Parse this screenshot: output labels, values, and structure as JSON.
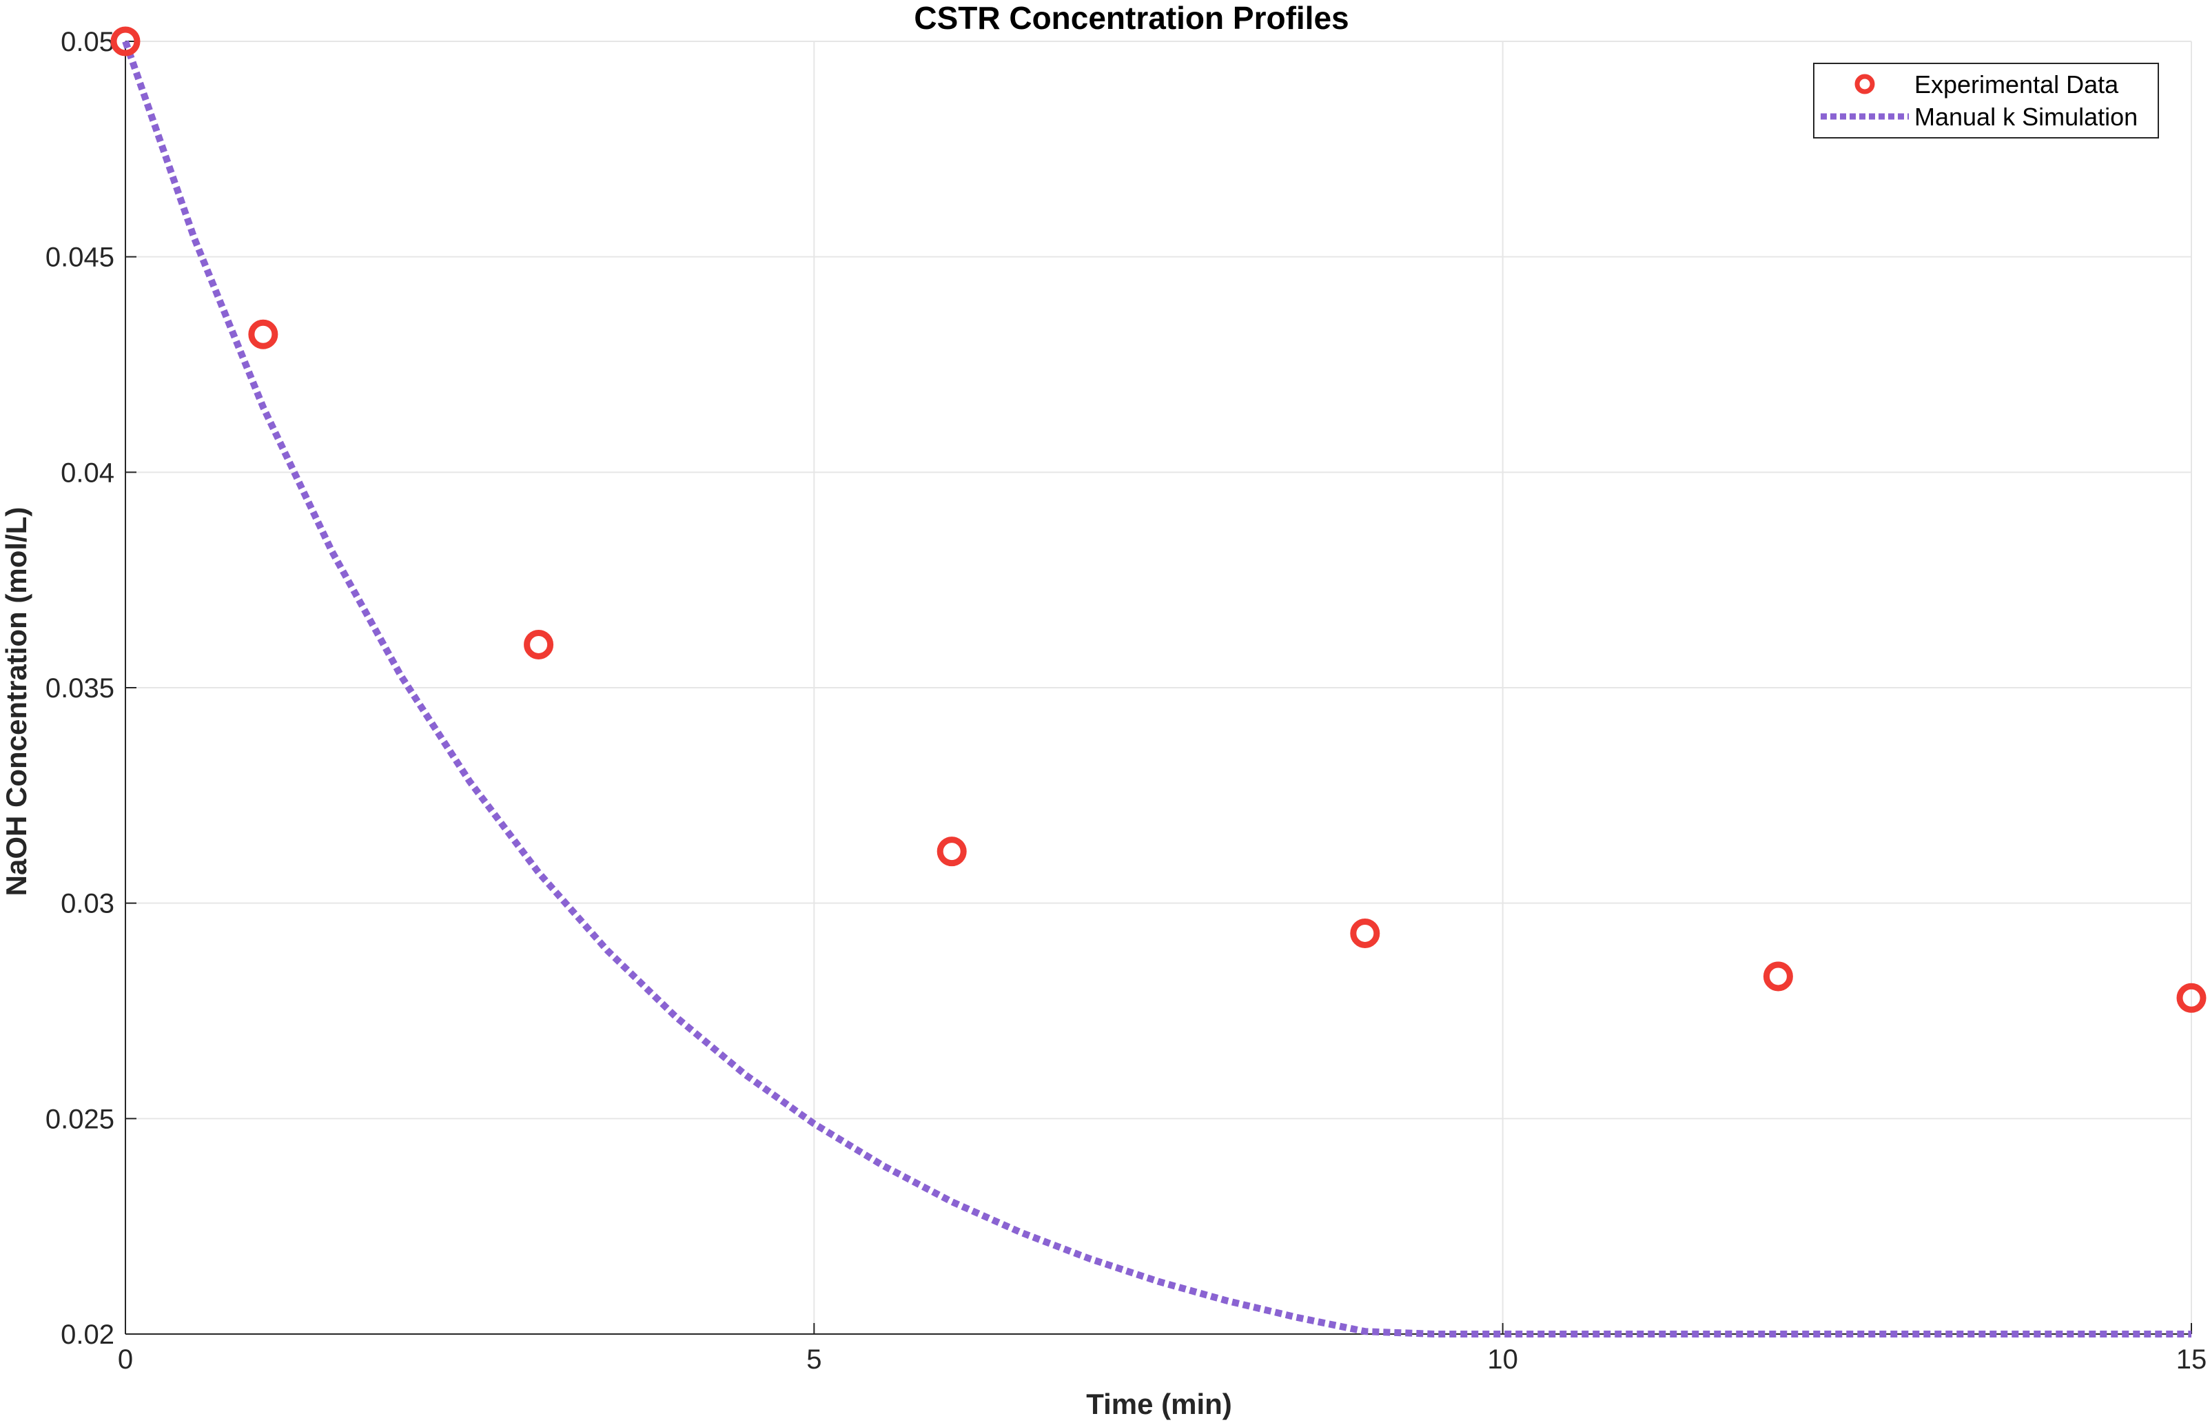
{
  "chart_data": {
    "type": "line",
    "title": "CSTR Concentration Profiles",
    "xlabel": "Time (min)",
    "ylabel": "NaOH Concentration (mol/L)",
    "xlim": [
      0,
      15
    ],
    "ylim": [
      0.02,
      0.05
    ],
    "xticks": [
      0,
      5,
      10,
      15
    ],
    "xtick_labels": [
      "0",
      "5",
      "10",
      "15"
    ],
    "yticks": [
      0.02,
      0.025,
      0.03,
      0.035,
      0.04,
      0.045,
      0.05
    ],
    "ytick_labels": [
      "0.02",
      "0.025",
      "0.03",
      "0.035",
      "0.04",
      "0.045",
      "0.05"
    ],
    "grid": true,
    "legend_position": "top-right",
    "series": [
      {
        "name": "Experimental Data",
        "type": "scatter",
        "marker": "circle",
        "color": "#F03A32",
        "x": [
          0,
          1,
          3,
          6,
          9,
          12,
          15
        ],
        "y": [
          0.05,
          0.0432,
          0.036,
          0.0312,
          0.0293,
          0.0283,
          0.0278
        ]
      },
      {
        "name": "Manual k Simulation",
        "type": "line",
        "style": "dotted",
        "color": "#8A63D2",
        "x": [
          0,
          0.5,
          1,
          1.5,
          2,
          2.5,
          3,
          3.5,
          4,
          4.5,
          5,
          5.5,
          6,
          6.5,
          7,
          7.5,
          8,
          8.5,
          9,
          9.5,
          10,
          10.5,
          11,
          11.5,
          12,
          12.5,
          13,
          13.5,
          14,
          14.5,
          15
        ],
        "y": [
          0.05,
          0.04543,
          0.04151,
          0.03816,
          0.03528,
          0.03282,
          0.03071,
          0.0289,
          0.02735,
          0.02602,
          0.02488,
          0.02391,
          0.02307,
          0.02236,
          0.02175,
          0.02122,
          0.02077,
          0.02039,
          0.02006,
          0.01978,
          0.01954,
          0.01933,
          0.01915,
          0.019,
          0.01887,
          0.01876,
          0.01866,
          0.01858,
          0.01851,
          0.01845,
          0.0184
        ]
      }
    ]
  }
}
